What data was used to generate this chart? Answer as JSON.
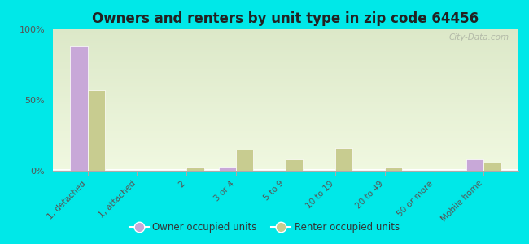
{
  "title": "Owners and renters by unit type in zip code 64456",
  "categories": [
    "1, detached",
    "1, attached",
    "2",
    "3 or 4",
    "5 to 9",
    "10 to 19",
    "20 to 49",
    "50 or more",
    "Mobile home"
  ],
  "owner_values": [
    88,
    0,
    0,
    3,
    0,
    0,
    0,
    0,
    8
  ],
  "renter_values": [
    57,
    0,
    3,
    15,
    8,
    16,
    3,
    0,
    6
  ],
  "owner_color": "#c8a8d8",
  "renter_color": "#c8cc90",
  "background_color": "#00e8e8",
  "plot_bg_gradient_top": "#dce8c8",
  "plot_bg_gradient_bottom": "#f0f8e0",
  "ylim": [
    0,
    100
  ],
  "yticks": [
    0,
    50,
    100
  ],
  "ytick_labels": [
    "0%",
    "50%",
    "100%"
  ],
  "bar_width": 0.35,
  "watermark": "City-Data.com",
  "legend_owner": "Owner occupied units",
  "legend_renter": "Renter occupied units"
}
